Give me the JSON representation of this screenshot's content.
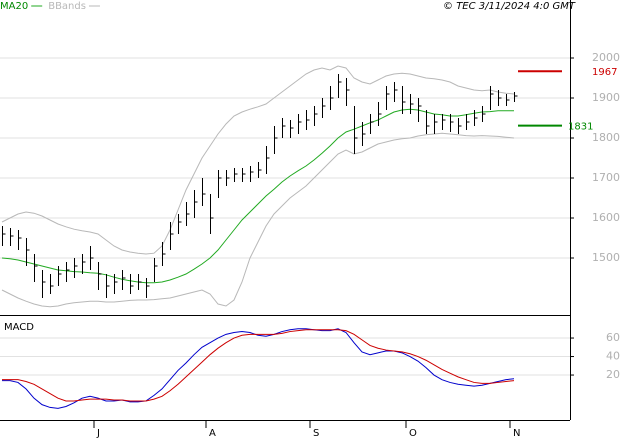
{
  "chart_data": [
    {
      "type": "ohlc",
      "annotation": "© TEC 3/11/2024 4:0 GMT",
      "high": [
        1580,
        1575,
        1570,
        1550,
        1510,
        1470,
        1460,
        1480,
        1490,
        1500,
        1510,
        1530,
        1490,
        1460,
        1460,
        1470,
        1460,
        1460,
        1450,
        1500,
        1540,
        1590,
        1610,
        1640,
        1670,
        1700,
        1660,
        1720,
        1720,
        1725,
        1725,
        1730,
        1740,
        1780,
        1830,
        1850,
        1845,
        1860,
        1870,
        1880,
        1900,
        1930,
        1960,
        1950,
        1880,
        1840,
        1860,
        1890,
        1930,
        1940,
        1930,
        1910,
        1900,
        1870,
        1860,
        1860,
        1860,
        1850,
        1860,
        1870,
        1880,
        1930,
        1920,
        1910,
        1915
      ],
      "low": [
        1530,
        1530,
        1520,
        1480,
        1440,
        1400,
        1410,
        1430,
        1440,
        1450,
        1460,
        1470,
        1420,
        1400,
        1410,
        1420,
        1410,
        1420,
        1400,
        1440,
        1480,
        1520,
        1560,
        1580,
        1600,
        1630,
        1560,
        1650,
        1680,
        1690,
        1690,
        1690,
        1700,
        1710,
        1760,
        1800,
        1800,
        1810,
        1820,
        1830,
        1850,
        1870,
        1900,
        1880,
        1760,
        1780,
        1810,
        1830,
        1870,
        1890,
        1860,
        1860,
        1840,
        1810,
        1810,
        1820,
        1815,
        1810,
        1820,
        1830,
        1840,
        1870,
        1880,
        1880,
        1890
      ],
      "close": [
        1560,
        1555,
        1550,
        1520,
        1480,
        1440,
        1430,
        1460,
        1470,
        1480,
        1490,
        1500,
        1460,
        1430,
        1440,
        1450,
        1430,
        1440,
        1430,
        1480,
        1510,
        1560,
        1590,
        1610,
        1640,
        1660,
        1600,
        1700,
        1700,
        1710,
        1710,
        1715,
        1720,
        1750,
        1800,
        1830,
        1825,
        1840,
        1845,
        1860,
        1880,
        1900,
        1940,
        1920,
        1800,
        1810,
        1840,
        1860,
        1910,
        1920,
        1890,
        1885,
        1880,
        1830,
        1840,
        1845,
        1840,
        1830,
        1840,
        1850,
        1860,
        1910,
        1900,
        1895,
        1905
      ],
      "bar_color": "#000000",
      "series": [
        {
          "name": "MA20",
          "color": "#22aa22",
          "values": [
            1500,
            1498,
            1495,
            1490,
            1485,
            1480,
            1475,
            1470,
            1468,
            1466,
            1465,
            1463,
            1462,
            1458,
            1452,
            1447,
            1443,
            1440,
            1438,
            1438,
            1440,
            1445,
            1452,
            1460,
            1472,
            1485,
            1500,
            1520,
            1545,
            1570,
            1595,
            1615,
            1635,
            1655,
            1672,
            1690,
            1705,
            1718,
            1730,
            1745,
            1762,
            1780,
            1800,
            1815,
            1822,
            1830,
            1838,
            1845,
            1855,
            1865,
            1870,
            1872,
            1870,
            1865,
            1860,
            1858,
            1855,
            1855,
            1858,
            1862,
            1865,
            1866,
            1868,
            1868,
            1868
          ]
        },
        {
          "name": "BBands",
          "color": "#b8b8b8",
          "upper": [
            1590,
            1600,
            1610,
            1615,
            1612,
            1605,
            1595,
            1585,
            1578,
            1572,
            1568,
            1565,
            1560,
            1545,
            1530,
            1520,
            1515,
            1512,
            1510,
            1512,
            1530,
            1570,
            1620,
            1670,
            1710,
            1750,
            1780,
            1810,
            1835,
            1855,
            1865,
            1872,
            1878,
            1885,
            1900,
            1915,
            1930,
            1945,
            1960,
            1970,
            1975,
            1970,
            1980,
            1975,
            1950,
            1940,
            1935,
            1945,
            1955,
            1960,
            1962,
            1960,
            1955,
            1950,
            1948,
            1945,
            1940,
            1930,
            1925,
            1920,
            1918,
            1920,
            1915,
            1912,
            1910
          ],
          "lower": [
            1420,
            1410,
            1400,
            1392,
            1385,
            1380,
            1378,
            1380,
            1385,
            1388,
            1390,
            1392,
            1392,
            1390,
            1390,
            1392,
            1394,
            1395,
            1395,
            1396,
            1398,
            1400,
            1405,
            1410,
            1415,
            1420,
            1410,
            1385,
            1380,
            1395,
            1440,
            1500,
            1540,
            1580,
            1610,
            1630,
            1650,
            1665,
            1680,
            1700,
            1720,
            1740,
            1760,
            1770,
            1760,
            1765,
            1775,
            1785,
            1790,
            1795,
            1798,
            1800,
            1805,
            1808,
            1810,
            1812,
            1810,
            1808,
            1806,
            1805,
            1806,
            1805,
            1804,
            1802,
            1800
          ]
        }
      ],
      "levels": [
        {
          "value": 1967,
          "color": "#cc0000"
        },
        {
          "value": 1831,
          "color": "#008800"
        }
      ],
      "ylim": [
        1357.5,
        2145
      ],
      "yticks": [
        1500,
        1600,
        1700,
        1800,
        1900,
        2000
      ],
      "grid": true
    },
    {
      "type": "line",
      "title": "MACD",
      "categories": [
        null,
        null,
        null,
        null,
        null,
        null,
        null,
        null,
        null,
        null,
        null,
        null,
        "J",
        null,
        null,
        null,
        null,
        null,
        null,
        null,
        null,
        null,
        null,
        null,
        null,
        null,
        "A",
        null,
        null,
        null,
        null,
        null,
        null,
        null,
        null,
        null,
        null,
        null,
        null,
        "S",
        null,
        null,
        null,
        null,
        null,
        null,
        null,
        null,
        null,
        null,
        null,
        "O",
        null,
        null,
        null,
        null,
        null,
        null,
        null,
        null,
        null,
        null,
        null,
        null,
        "N"
      ],
      "series": [
        {
          "color": "#0000cc",
          "values": [
            14,
            14,
            12,
            5,
            -5,
            -12,
            -15,
            -16,
            -14,
            -10,
            -5,
            -3,
            -5,
            -8,
            -8,
            -7,
            -9,
            -9,
            -8,
            -2,
            5,
            15,
            25,
            33,
            42,
            50,
            55,
            60,
            64,
            66,
            67,
            66,
            63,
            62,
            64,
            67,
            69,
            70,
            70,
            69,
            68,
            68,
            70,
            66,
            55,
            45,
            42,
            44,
            46,
            46,
            44,
            40,
            35,
            28,
            20,
            15,
            12,
            10,
            9,
            8,
            9,
            11,
            13,
            15,
            16
          ]
        },
        {
          "color": "#cc0000",
          "values": [
            15,
            15,
            15,
            13,
            10,
            5,
            0,
            -5,
            -8,
            -8,
            -7,
            -6,
            -6,
            -6,
            -7,
            -7,
            -8,
            -8,
            -8,
            -6,
            -3,
            3,
            10,
            18,
            26,
            34,
            42,
            49,
            55,
            60,
            63,
            64,
            64,
            64,
            64,
            65,
            67,
            68,
            69,
            69,
            69,
            69,
            69,
            68,
            64,
            58,
            52,
            49,
            47,
            46,
            45,
            43,
            40,
            36,
            31,
            26,
            22,
            18,
            15,
            12,
            11,
            11,
            12,
            13,
            14
          ]
        }
      ],
      "ylim": [
        -28.6,
        84.9
      ],
      "yticks": [
        20,
        40,
        60
      ],
      "grid": true
    }
  ]
}
